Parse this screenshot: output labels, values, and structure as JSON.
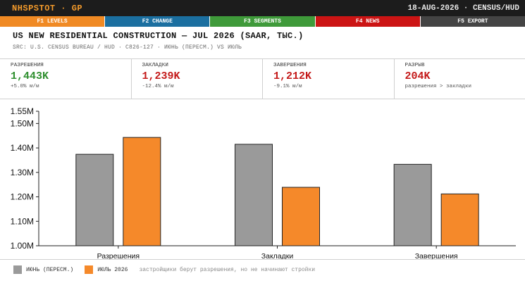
{
  "topbar": {
    "ticker": "NHSPSTOT · GP",
    "right": "18-AUG-2026 · CENSUS/HUD"
  },
  "fkeys": [
    {
      "label": "F1 LEVELS",
      "color": "#f08a24"
    },
    {
      "label": "F2 CHANGE",
      "color": "#1b6fa0"
    },
    {
      "label": "F3 SEGMENTS",
      "color": "#3f9a3a"
    },
    {
      "label": "F4 NEWS",
      "color": "#cc1414"
    },
    {
      "label": "F5 EXPORT",
      "color": "#444444"
    }
  ],
  "header": {
    "title": "US NEW RESIDENTIAL CONSTRUCTION — JUL 2026 (SAAR, ТЫС.)",
    "subtitle": "SRC: U.S. CENSUS BUREAU / HUD · C826-127 · ИЮНЬ (ПЕРЕСМ.) VS ИЮЛЬ"
  },
  "kpis": [
    {
      "label": "РАЗРЕШЕНИЯ",
      "value": "1,443K",
      "sub": "+5.0% м/м",
      "color": "#2f8f2f"
    },
    {
      "label": "ЗАКЛАДКИ",
      "value": "1,239K",
      "sub": "-12.4% м/м",
      "color": "#c41a1a"
    },
    {
      "label": "ЗАВЕРШЕНИЯ",
      "value": "1,212K",
      "sub": "-9.1% м/м",
      "color": "#c41a1a"
    },
    {
      "label": "РАЗРЫВ",
      "value": "204K",
      "sub": "разрешения > закладки",
      "color": "#c41a1a"
    }
  ],
  "chart_data": {
    "type": "bar",
    "categories": [
      "Разрешения",
      "Закладки",
      "Завершения"
    ],
    "series": [
      {
        "name": "ИЮНЬ (ПЕРЕСМ.)",
        "values": [
          1.374,
          1.415,
          1.333
        ],
        "color": "#9a9a9a"
      },
      {
        "name": "ИЮЛЬ 2026",
        "values": [
          1.443,
          1.239,
          1.212
        ],
        "color": "#f5892a"
      }
    ],
    "yticks": [
      "1.00M",
      "1.10M",
      "1.20M",
      "1.30M",
      "1.40M",
      "1.50M",
      "1.55M"
    ],
    "ytick_values": [
      1.0,
      1.1,
      1.2,
      1.3,
      1.4,
      1.5,
      1.55
    ],
    "ylim": [
      1.0,
      1.55
    ],
    "grid": false
  },
  "legend": {
    "note": "застройщики берут разрешения, но не начинают стройки"
  }
}
